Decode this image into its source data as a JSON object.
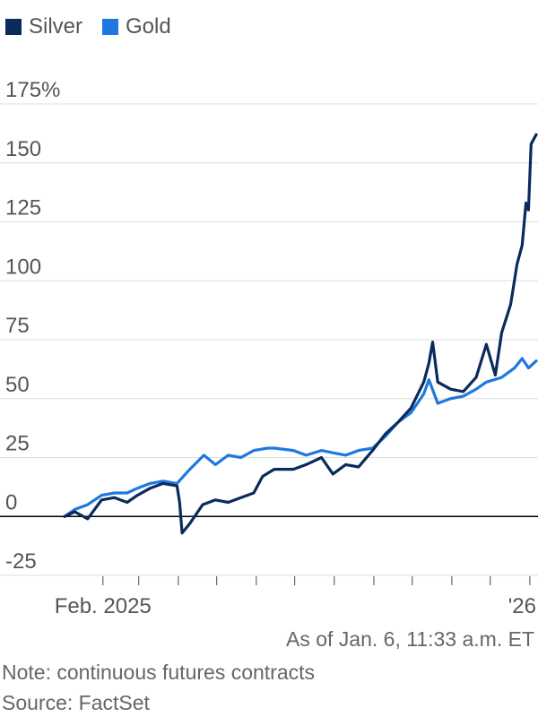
{
  "chart_data": {
    "type": "line",
    "title": "",
    "xlabel": "",
    "ylabel": "",
    "ylim": [
      -25,
      175
    ],
    "y_ticks": [
      "175%",
      "150",
      "125",
      "100",
      "75",
      "50",
      "25",
      "0",
      "-25"
    ],
    "x_tick_labels": [
      "Feb. 2025",
      "'26"
    ],
    "legend": "top-left",
    "grid": true,
    "series": [
      {
        "name": "Silver",
        "color": "#0b2a5b",
        "x": [
          "2025-01-02",
          "2025-01-10",
          "2025-01-20",
          "2025-01-31",
          "2025-02-10",
          "2025-02-20",
          "2025-02-28",
          "2025-03-10",
          "2025-03-20",
          "2025-03-31",
          "2025-04-02",
          "2025-04-04",
          "2025-04-10",
          "2025-04-20",
          "2025-04-30",
          "2025-05-10",
          "2025-05-20",
          "2025-05-30",
          "2025-06-06",
          "2025-06-15",
          "2025-06-30",
          "2025-07-10",
          "2025-07-22",
          "2025-07-31",
          "2025-08-10",
          "2025-08-20",
          "2025-08-31",
          "2025-09-10",
          "2025-09-20",
          "2025-09-30",
          "2025-10-10",
          "2025-10-14",
          "2025-10-17",
          "2025-10-21",
          "2025-10-31",
          "2025-11-10",
          "2025-11-20",
          "2025-11-28",
          "2025-12-05",
          "2025-12-10",
          "2025-12-17",
          "2025-12-22",
          "2025-12-26",
          "2025-12-29",
          "2025-12-31",
          "2026-01-02",
          "2026-01-06"
        ],
        "values": [
          0,
          2,
          -1,
          7,
          8,
          6,
          9,
          12,
          14,
          13,
          6,
          -7,
          -3,
          5,
          7,
          6,
          8,
          10,
          17,
          20,
          20,
          22,
          25,
          18,
          22,
          21,
          28,
          35,
          40,
          46,
          57,
          65,
          74,
          57,
          54,
          53,
          59,
          73,
          60,
          78,
          90,
          107,
          115,
          133,
          130,
          158,
          162
        ]
      },
      {
        "name": "Gold",
        "color": "#1f78e0",
        "x": [
          "2025-01-02",
          "2025-01-10",
          "2025-01-20",
          "2025-01-31",
          "2025-02-10",
          "2025-02-20",
          "2025-02-28",
          "2025-03-10",
          "2025-03-20",
          "2025-03-31",
          "2025-04-10",
          "2025-04-21",
          "2025-04-30",
          "2025-05-10",
          "2025-05-20",
          "2025-05-30",
          "2025-06-10",
          "2025-06-15",
          "2025-06-30",
          "2025-07-10",
          "2025-07-22",
          "2025-07-31",
          "2025-08-10",
          "2025-08-20",
          "2025-08-31",
          "2025-09-10",
          "2025-09-20",
          "2025-09-30",
          "2025-10-10",
          "2025-10-14",
          "2025-10-21",
          "2025-10-31",
          "2025-11-10",
          "2025-11-20",
          "2025-11-28",
          "2025-12-10",
          "2025-12-20",
          "2025-12-26",
          "2025-12-31",
          "2026-01-06"
        ],
        "values": [
          0,
          3,
          5,
          9,
          10,
          10,
          12,
          14,
          15,
          14,
          20,
          26,
          22,
          26,
          25,
          28,
          29,
          29,
          28,
          26,
          28,
          27,
          26,
          28,
          29,
          34,
          40,
          44,
          52,
          58,
          48,
          50,
          51,
          54,
          57,
          59,
          63,
          67,
          63,
          66
        ]
      }
    ]
  },
  "footer": {
    "as_of": "As of Jan. 6, 11:33 a.m. ET",
    "note": "Note: continuous futures contracts",
    "source": "Source: FactSet"
  }
}
